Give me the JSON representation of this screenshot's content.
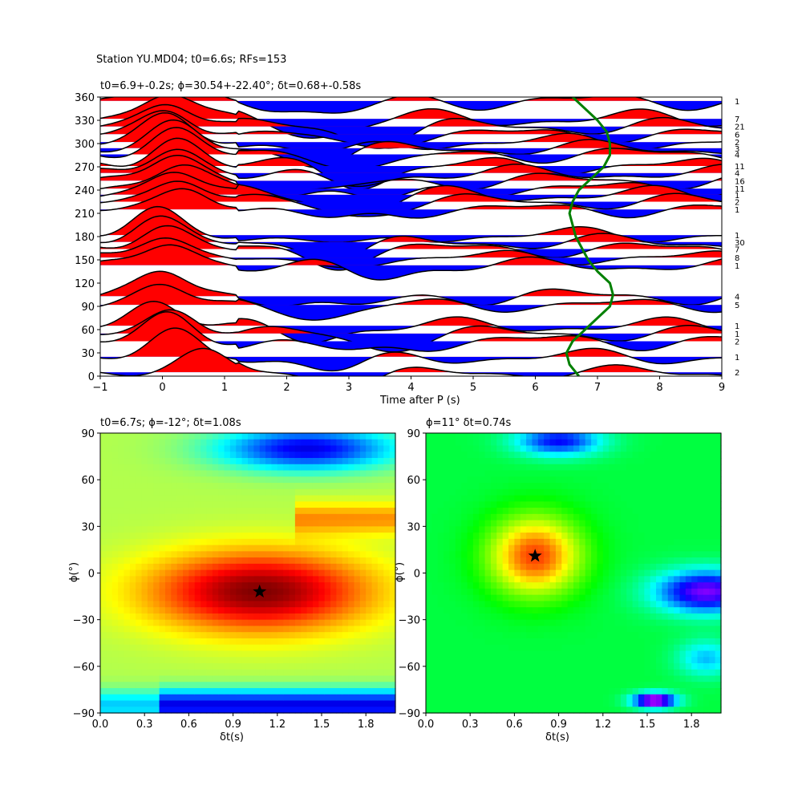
{
  "suptitle": "Station YU.MD04; t0=6.6s; RFs=153",
  "chart_data": [
    {
      "id": "receiver-functions",
      "type": "line",
      "title": "t0=6.9+-0.2s; ϕ=30.54+-22.40°; δt=0.68+-0.58s",
      "xlabel": "Time after P (s)",
      "ylabel": "",
      "xlim": [
        -1,
        9
      ],
      "ylim": [
        0,
        360
      ],
      "xticks": [
        "−1",
        "0",
        "1",
        "2",
        "3",
        "4",
        "5",
        "6",
        "7",
        "8",
        "9"
      ],
      "yticks": [
        "0",
        "30",
        "60",
        "90",
        "120",
        "150",
        "180",
        "210",
        "240",
        "270",
        "300",
        "330",
        "360"
      ],
      "fill_colors": {
        "positive": "#ff0000",
        "negative": "#0000ff"
      },
      "traces": [
        {
          "baz": 5,
          "count": "2",
          "peak_t": 0.7,
          "amp": 26
        },
        {
          "baz": 25,
          "count": "1",
          "peak_t": 0.2,
          "amp": 30
        },
        {
          "baz": 45,
          "count": "2",
          "peak_t": 0.1,
          "amp": 32
        },
        {
          "baz": 55,
          "count": "1",
          "peak_t": 0.2,
          "amp": 30
        },
        {
          "baz": 65,
          "count": "1",
          "peak_t": -0.1,
          "amp": 30
        },
        {
          "baz": 92,
          "count": "5",
          "peak_t": 0.0,
          "amp": 26
        },
        {
          "baz": 103,
          "count": "4",
          "peak_t": 0.0,
          "amp": 32
        },
        {
          "baz": 143,
          "count": "1",
          "peak_t": 0.1,
          "amp": 28
        },
        {
          "baz": 153,
          "count": "8",
          "peak_t": 0.0,
          "amp": 28
        },
        {
          "baz": 164,
          "count": "7",
          "peak_t": 0.0,
          "amp": 30
        },
        {
          "baz": 173,
          "count": "30",
          "peak_t": -0.1,
          "amp": 30
        },
        {
          "baz": 182,
          "count": "1",
          "peak_t": -0.1,
          "amp": 30
        },
        {
          "baz": 215,
          "count": "1",
          "peak_t": 0.4,
          "amp": 28
        },
        {
          "baz": 225,
          "count": "2",
          "peak_t": 0.3,
          "amp": 30
        },
        {
          "baz": 234,
          "count": "1",
          "peak_t": 0.2,
          "amp": 32
        },
        {
          "baz": 242,
          "count": "11",
          "peak_t": 0.3,
          "amp": 30
        },
        {
          "baz": 252,
          "count": "16",
          "peak_t": 0.2,
          "amp": 32
        },
        {
          "baz": 262,
          "count": "4",
          "peak_t": 0.2,
          "amp": 30
        },
        {
          "baz": 271,
          "count": "11",
          "peak_t": 0.2,
          "amp": 34
        },
        {
          "baz": 286,
          "count": "4",
          "peak_t": 0.2,
          "amp": 30
        },
        {
          "baz": 294,
          "count": "3",
          "peak_t": 0.2,
          "amp": 30
        },
        {
          "baz": 302,
          "count": "2",
          "peak_t": 0.1,
          "amp": 32
        },
        {
          "baz": 312,
          "count": "6",
          "peak_t": 0.1,
          "amp": 30
        },
        {
          "baz": 322,
          "count": "21",
          "peak_t": 0.1,
          "amp": 32
        },
        {
          "baz": 332,
          "count": "7",
          "peak_t": 0.1,
          "amp": 34
        },
        {
          "baz": 355,
          "count": "1",
          "peak_t": 0.1,
          "amp": 32
        }
      ],
      "green_curve": {
        "color": "#008000",
        "baz": [
          0,
          15,
          30,
          45,
          60,
          75,
          90,
          105,
          120,
          135,
          150,
          165,
          180,
          195,
          210,
          225,
          240,
          255,
          270,
          285,
          300,
          315,
          330,
          345,
          360
        ],
        "t": [
          6.7,
          6.55,
          6.5,
          6.6,
          6.8,
          7.0,
          7.2,
          7.25,
          7.2,
          7.0,
          6.85,
          6.75,
          6.65,
          6.6,
          6.55,
          6.6,
          6.7,
          6.9,
          7.1,
          7.2,
          7.2,
          7.15,
          7.0,
          6.8,
          6.6
        ]
      }
    },
    {
      "id": "energy-map-left",
      "type": "heatmap",
      "title": "t0=6.7s; ϕ=-12°; δt=1.08s",
      "xlabel": "δt(s)",
      "ylabel": "ϕ(°)",
      "xlim": [
        0.0,
        2.0
      ],
      "ylim": [
        -90,
        90
      ],
      "xticks": [
        "0.0",
        "0.3",
        "0.6",
        "0.9",
        "1.2",
        "1.5",
        "1.8"
      ],
      "yticks": [
        "−90",
        "−60",
        "−30",
        "0",
        "30",
        "60",
        "90"
      ],
      "colormap": "jet",
      "best": {
        "dt": 1.08,
        "phi": -12
      }
    },
    {
      "id": "energy-map-right",
      "type": "heatmap",
      "title": "ϕ=11° δt=0.74s",
      "xlabel": "δt(s)",
      "ylabel": "ϕ(°)",
      "xlim": [
        0.0,
        2.0
      ],
      "ylim": [
        -90,
        90
      ],
      "xticks": [
        "0.0",
        "0.3",
        "0.6",
        "0.9",
        "1.2",
        "1.5",
        "1.8"
      ],
      "yticks": [
        "−90",
        "−60",
        "−30",
        "0",
        "30",
        "60",
        "90"
      ],
      "colormap": "hsv-like",
      "best": {
        "dt": 0.74,
        "phi": 11
      }
    }
  ]
}
